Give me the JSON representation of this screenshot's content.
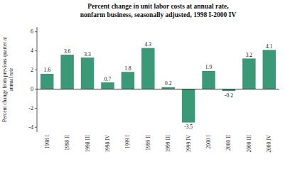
{
  "chart_data": {
    "type": "bar",
    "title": "Percent change in unit labor costs at annual rate,\nnonfarm business, seasonally adjusted, 1998 I-2000 IV",
    "ylabel": "Percent change from previous quarter at\nannual rate",
    "categories": [
      "1998 I",
      "1998 II",
      "1998 III",
      "1998 IV",
      "1999 I",
      "1999 II",
      "1999 III",
      "1999 IV",
      "2000 I",
      "2000 II",
      "2000 III",
      "2000 IV"
    ],
    "values": [
      1.6,
      3.6,
      3.3,
      0.7,
      1.8,
      4.3,
      0.2,
      -3.5,
      1.9,
      -0.2,
      3.2,
      4.1
    ],
    "color": "#3a9a78",
    "ylim": [
      -4.5,
      6.5
    ],
    "yticks": [
      -4,
      -2,
      0,
      2,
      4,
      6
    ],
    "grid": false,
    "data_labels": true
  }
}
